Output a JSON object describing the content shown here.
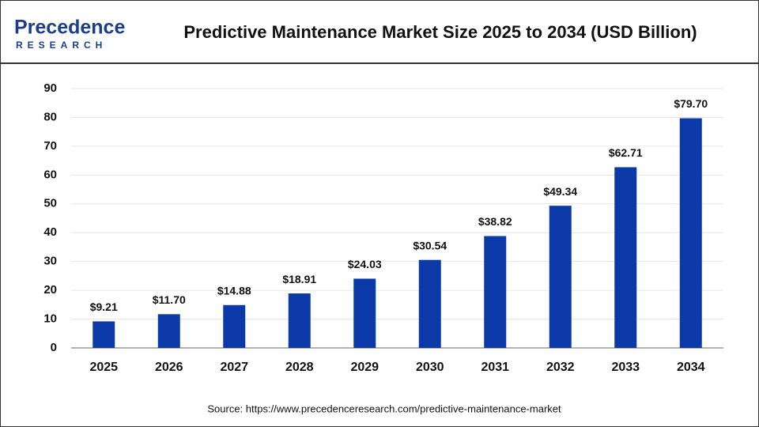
{
  "logo": {
    "name": "Precedence",
    "tagline": "RESEARCH"
  },
  "chart_data": {
    "type": "bar",
    "title": "Predictive Maintenance Market Size 2025 to 2034 (USD Billion)",
    "categories": [
      "2025",
      "2026",
      "2027",
      "2028",
      "2029",
      "2030",
      "2031",
      "2032",
      "2033",
      "2034"
    ],
    "values": [
      9.21,
      11.7,
      14.88,
      18.91,
      24.03,
      30.54,
      38.82,
      49.34,
      62.71,
      79.7
    ],
    "value_labels": [
      "$9.21",
      "$11.70",
      "$14.88",
      "$18.91",
      "$24.03",
      "$30.54",
      "$38.82",
      "$49.34",
      "$62.71",
      "$79.70"
    ],
    "color": "#0b3aa8",
    "ylim": [
      0,
      90
    ],
    "yticks": [
      0,
      10,
      20,
      30,
      40,
      50,
      60,
      70,
      80,
      90
    ],
    "grid": true,
    "source": "Source: https://www.precedenceresearch.com/predictive-maintenance-market"
  }
}
